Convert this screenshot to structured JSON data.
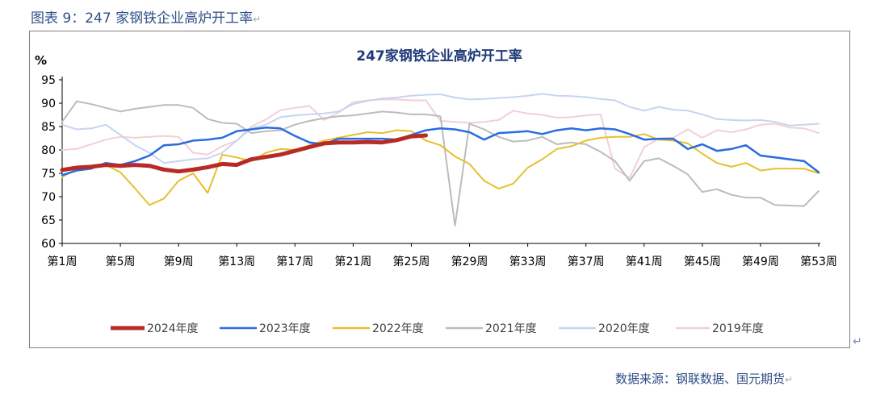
{
  "caption": {
    "prefix": "图表 9：",
    "text": "247 家钢铁企业高炉开工率",
    "return_mark": "↵"
  },
  "source_text": "数据来源：钢联数据、国元期货",
  "source_return_mark": "↵",
  "side_mark": "↵",
  "chart_data": {
    "type": "line",
    "title": "247家钢铁企业高炉开工率",
    "ylabel": "%",
    "xlabel": "",
    "ylim": [
      60,
      95
    ],
    "yticks": [
      60,
      65,
      70,
      75,
      80,
      85,
      90,
      95
    ],
    "x_count": 53,
    "x_tick_labels": [
      "第1周",
      "第5周",
      "第9周",
      "第13周",
      "第17周",
      "第21周",
      "第25周",
      "第29周",
      "第33周",
      "第37周",
      "第41周",
      "第45周",
      "第49周",
      "第53周"
    ],
    "x_tick_positions": [
      1,
      5,
      9,
      13,
      17,
      21,
      25,
      29,
      33,
      37,
      41,
      45,
      49,
      53
    ],
    "grid": false,
    "legend_position": "bottom",
    "series": [
      {
        "name": "2019年度",
        "color": "#f2d0d4",
        "width": 2,
        "values": [
          80,
          80.2,
          81.2,
          82.2,
          82.8,
          82.6,
          82.8,
          83,
          82.8,
          79.4,
          79,
          80.8,
          82,
          85,
          86.5,
          88.5,
          89,
          89.4,
          86.4,
          88,
          90.2,
          90.6,
          90.8,
          90.8,
          90.6,
          90.6,
          86.2,
          86,
          85.8,
          86,
          86.4,
          88.4,
          87.8,
          87.5,
          86.9,
          87,
          87.4,
          87.6,
          76,
          74,
          80.6,
          82.4,
          82.6,
          84.4,
          82.6,
          84.2,
          83.8,
          84.4,
          85.4,
          85.6,
          84.8,
          84.6,
          83.6
        ]
      },
      {
        "name": "2020年度",
        "color": "#c7d4f2",
        "width": 2,
        "values": [
          85.4,
          84.4,
          84.6,
          85.4,
          83.2,
          81,
          79.4,
          77.2,
          77.6,
          78,
          78.2,
          79.4,
          82,
          84.6,
          85.4,
          87,
          87.4,
          87.6,
          87.8,
          88.2,
          89.8,
          90.5,
          91,
          91.2,
          91.6,
          91.8,
          91.9,
          91.2,
          90.8,
          90.9,
          91.1,
          91.3,
          91.6,
          92,
          91.6,
          91.5,
          91.3,
          90.9,
          90.6,
          89.2,
          88.4,
          89.2,
          88.6,
          88.4,
          87.6,
          86.6,
          86.4,
          86.3,
          86.4,
          86,
          85.2,
          85.4,
          85.6
        ]
      },
      {
        "name": "2021年度",
        "color": "#bcbcbc",
        "width": 2,
        "values": [
          86,
          90.4,
          89.8,
          89,
          88.2,
          88.8,
          89.2,
          89.6,
          89.6,
          89,
          86.6,
          85.8,
          85.6,
          83.6,
          84,
          84.2,
          85.4,
          86.2,
          86.8,
          87.2,
          87.4,
          87.8,
          88.2,
          88,
          87.6,
          87.6,
          87.2,
          63.8,
          85.6,
          84.4,
          82.8,
          81.8,
          82,
          82.8,
          81.2,
          81.6,
          81.2,
          79.6,
          77.6,
          73.4,
          77.6,
          78.2,
          76.6,
          74.8,
          71,
          71.6,
          70.4,
          69.8,
          69.8,
          68.2,
          68.1,
          68,
          71.2
        ]
      },
      {
        "name": "2022年度",
        "color": "#e6c02e",
        "width": 2,
        "values": [
          74.2,
          76,
          76.4,
          76.8,
          75.2,
          71.8,
          68.2,
          69.6,
          73.4,
          75,
          70.8,
          79,
          78.4,
          77.6,
          79.4,
          80.2,
          80,
          81,
          82,
          82.6,
          83.2,
          83.8,
          83.6,
          84.2,
          84,
          82,
          81,
          78.6,
          77,
          73.4,
          71.7,
          72.8,
          76.2,
          78,
          80.2,
          80.8,
          82,
          82.6,
          82.8,
          82.8,
          83.4,
          82.2,
          82,
          81.4,
          79.2,
          77.2,
          76.4,
          77.2,
          75.6,
          76,
          76,
          76,
          75
        ]
      },
      {
        "name": "2023年度",
        "color": "#2a6ce0",
        "width": 2.5,
        "values": [
          74.6,
          75.6,
          76,
          77.2,
          76.8,
          77.6,
          78.8,
          81,
          81.2,
          82,
          82.2,
          82.6,
          84,
          84.4,
          84.8,
          84.6,
          83,
          81.6,
          81.2,
          82.4,
          82.4,
          82.4,
          82.4,
          82.2,
          83.2,
          84.2,
          84.6,
          84.4,
          83.8,
          82.2,
          83.6,
          83.8,
          84,
          83.4,
          84.2,
          84.6,
          84.2,
          84.6,
          84.4,
          83.4,
          82.2,
          82.4,
          82.4,
          80.2,
          81.2,
          79.8,
          80.2,
          81,
          78.8,
          78.4,
          78,
          77.6,
          75.2
        ]
      },
      {
        "name": "2024年度",
        "color": "#b72a25",
        "width": 5,
        "values": [
          75.7,
          76.2,
          76.4,
          76.8,
          76.6,
          76.8,
          76.6,
          75.8,
          75.4,
          75.8,
          76.3,
          77,
          76.8,
          78,
          78.5,
          79,
          79.8,
          80.6,
          81.4,
          81.6,
          81.6,
          81.7,
          81.6,
          82.1,
          82.9,
          83.1,
          null,
          null,
          null,
          null,
          null,
          null,
          null,
          null,
          null,
          null,
          null,
          null,
          null,
          null,
          null,
          null,
          null,
          null,
          null,
          null,
          null,
          null,
          null,
          null,
          null,
          null,
          null
        ]
      }
    ],
    "legend_order": [
      "2024年度",
      "2023年度",
      "2022年度",
      "2021年度",
      "2020年度",
      "2019年度"
    ]
  }
}
